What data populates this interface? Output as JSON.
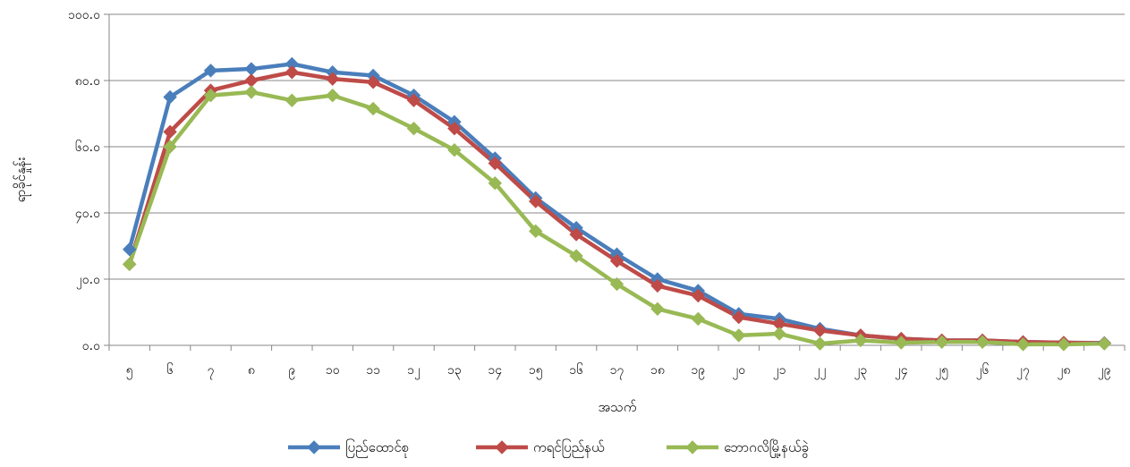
{
  "chart_data": {
    "type": "line",
    "title": "",
    "xlabel": "အသက်",
    "ylabel": "ရာခိုင်နှုန်း",
    "categories": [
      "၅",
      "၆",
      "၇",
      "၈",
      "၉",
      "၁၀",
      "၁၁",
      "၁၂",
      "၁၃",
      "၁၄",
      "၁၅",
      "၁၆",
      "၁၇",
      "၁၈",
      "၁၉",
      "၂၀",
      "၂၁",
      "၂၂",
      "၂၃",
      "၂၄",
      "၂၅",
      "၂၆",
      "၂၇",
      "၂၈",
      "၂၉"
    ],
    "ylim": [
      0,
      100
    ],
    "yticks": [
      0,
      20,
      40,
      60,
      80,
      100
    ],
    "ytick_labels": [
      "၀.၀",
      "၂၀.၀",
      "၄၀.၀",
      "၆၀.၀",
      "၈၀.၀",
      "၁၀၀.၀"
    ],
    "grid": true,
    "legend_position": "bottom",
    "series": [
      {
        "name": "ပြည်ထောင်စု",
        "color": "#4a7ebb",
        "marker": "diamond",
        "values": [
          29.0,
          75.0,
          83.0,
          83.5,
          85.0,
          82.5,
          81.5,
          75.5,
          67.5,
          56.5,
          44.5,
          35.5,
          27.5,
          20.0,
          16.5,
          9.5,
          8.0,
          5.0,
          3.0,
          2.0,
          1.5,
          1.5,
          1.0,
          0.8,
          0.7
        ]
      },
      {
        "name": "ကရင်ပြည်နယ်",
        "color": "#be4b48",
        "marker": "diamond",
        "values": [
          24.5,
          64.5,
          77.0,
          80.0,
          82.5,
          80.5,
          79.5,
          74.0,
          65.5,
          55.0,
          43.5,
          33.5,
          25.5,
          18.0,
          15.0,
          8.5,
          6.5,
          4.5,
          3.0,
          2.0,
          1.5,
          1.5,
          1.0,
          0.8,
          0.6
        ]
      },
      {
        "name": "ဘောဂလိမြို့နယ်ခွဲ",
        "color": "#98b954",
        "marker": "diamond",
        "values": [
          24.5,
          60.0,
          75.5,
          76.5,
          74.0,
          75.5,
          71.5,
          65.5,
          59.0,
          49.0,
          34.5,
          27.0,
          18.5,
          11.0,
          8.0,
          3.0,
          3.5,
          0.5,
          1.5,
          0.8,
          1.0,
          1.0,
          0.3,
          0.3,
          0.5
        ]
      }
    ]
  }
}
